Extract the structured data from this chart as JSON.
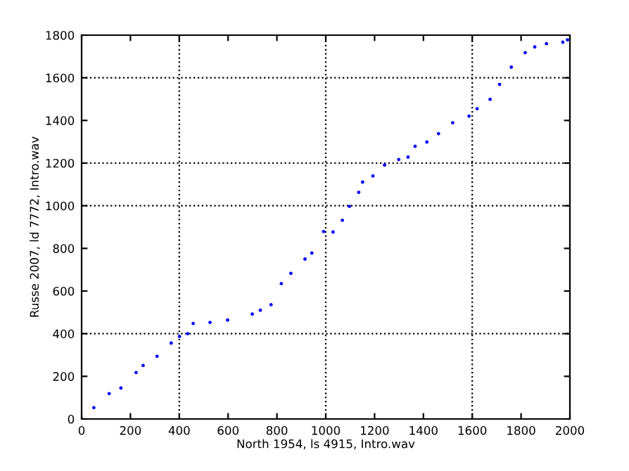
{
  "chart_data": {
    "type": "scatter",
    "xlabel": "North 1954, ls 4915, Intro.wav",
    "ylabel": "Russe 2007, ld 7772, Intro.wav",
    "x": [
      0,
      50,
      113,
      161,
      223,
      252,
      309,
      367,
      401,
      434,
      457,
      526,
      598,
      699,
      732,
      776,
      818,
      857,
      915,
      943,
      991,
      1030,
      1068,
      1097,
      1135,
      1151,
      1193,
      1241,
      1299,
      1337,
      1366,
      1414,
      1462,
      1520,
      1587,
      1620,
      1673,
      1712,
      1760,
      1817,
      1856,
      1904,
      1971,
      1990
    ],
    "series": [
      {
        "color": "#0000ff",
        "values": [
          0,
          53,
          119,
          145,
          218,
          251,
          294,
          356,
          387,
          400,
          448,
          453,
          464,
          492,
          510,
          536,
          635,
          683,
          750,
          778,
          879,
          877,
          932,
          997,
          1063,
          1111,
          1140,
          1191,
          1217,
          1228,
          1279,
          1299,
          1338,
          1389,
          1420,
          1455,
          1499,
          1569,
          1650,
          1718,
          1745,
          1760,
          1767,
          1778
        ]
      }
    ],
    "marker": "circle",
    "xlim": [
      0,
      2000
    ],
    "xticks": [
      0,
      200,
      400,
      600,
      800,
      1000,
      1200,
      1400,
      1600,
      1800,
      2000
    ],
    "ylim": [
      0,
      1800
    ],
    "yticks": [
      0,
      200,
      400,
      600,
      800,
      1000,
      1200,
      1400,
      1600,
      1800
    ],
    "grid": false,
    "ref_lines": [
      {
        "axis": "x",
        "value": 400,
        "color": "#000000",
        "line_style": "dotted"
      },
      {
        "axis": "x",
        "value": 1000,
        "color": "#000000",
        "line_style": "dotted"
      },
      {
        "axis": "x",
        "value": 1600,
        "color": "#000000",
        "line_style": "dotted"
      },
      {
        "axis": "y",
        "value": 400,
        "color": "#000000",
        "line_style": "dotted"
      },
      {
        "axis": "y",
        "value": 1000,
        "color": "#000000",
        "line_style": "dotted"
      },
      {
        "axis": "y",
        "value": 1200,
        "color": "#000000",
        "line_style": "dotted"
      },
      {
        "axis": "y",
        "value": 1600,
        "color": "#000000",
        "line_style": "dotted"
      }
    ]
  }
}
